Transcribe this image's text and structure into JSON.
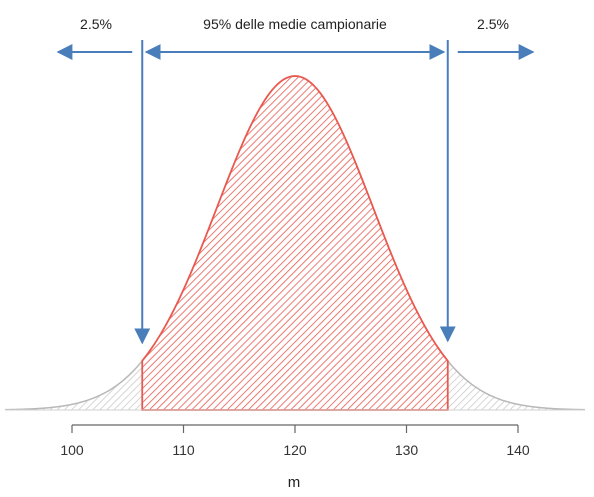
{
  "chart_data": {
    "type": "area",
    "title": "",
    "xlabel": "m",
    "ylabel": "",
    "distribution": {
      "kind": "normal",
      "mean": 120,
      "sd": 7
    },
    "xlim": [
      94,
      146
    ],
    "x_ticks": [
      100,
      110,
      120,
      130,
      140
    ],
    "tick_labels": [
      "100",
      "110",
      "120",
      "130",
      "140"
    ],
    "central_region": {
      "from": 106.3,
      "to": 133.7,
      "label": "95% delle medie campionarie"
    },
    "tails": [
      {
        "side": "left",
        "label": "2.5%"
      },
      {
        "side": "right",
        "label": "2.5%"
      }
    ],
    "colors": {
      "central": "#e8594f",
      "tails": "#b8b8b8",
      "arrows": "#4a7ebb",
      "axis": "#666666"
    }
  }
}
